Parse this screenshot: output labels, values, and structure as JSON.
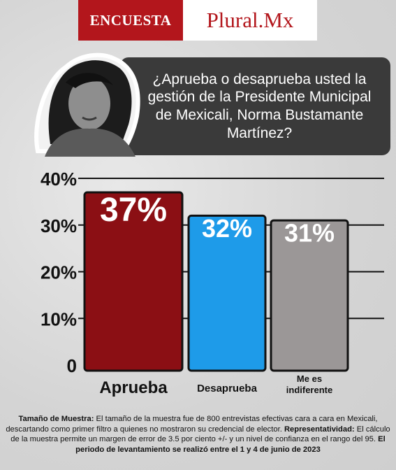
{
  "brand": {
    "survey_label": "ENCUESTA",
    "name": "Plural.Mx",
    "red": "#b3161c"
  },
  "question": "¿Aprueba o desaprueba usted la gestión de la Presidente Municipal de Mexicali, Norma Bustamante Martínez?",
  "chart_data": {
    "type": "bar",
    "title": "",
    "xlabel": "",
    "ylabel": "",
    "categories": [
      "Aprueba",
      "Desaprueba",
      "Me es indiferente"
    ],
    "values": [
      37,
      32,
      31
    ],
    "value_labels": [
      "37%",
      "32%",
      "31%"
    ],
    "colors": [
      "#8b0f14",
      "#1e9be9",
      "#9b9797"
    ],
    "ylim": [
      0,
      40
    ],
    "yticks": [
      0,
      10,
      20,
      30,
      40
    ],
    "ytick_labels": [
      "0",
      "10%",
      "20%",
      "30%",
      "40%"
    ],
    "grid": true,
    "legend": "none"
  },
  "footer": {
    "sample_label": "Tamaño de Muestra:",
    "sample_text": "El tamaño de la muestra fue de 800 entrevistas efectivas cara a cara en Mexicali, descartando como primer filtro a quienes no mostraron su credencial de elector.",
    "rep_label": "Representatividad:",
    "rep_text": "El cálculo de la muestra permite un margen de error de 3.5 por ciento +/- y un nivel de confianza en el rango del 95.",
    "period_text": "El periodo de levantamiento se realizó entre el 1 y 4 de junio de 2023"
  }
}
